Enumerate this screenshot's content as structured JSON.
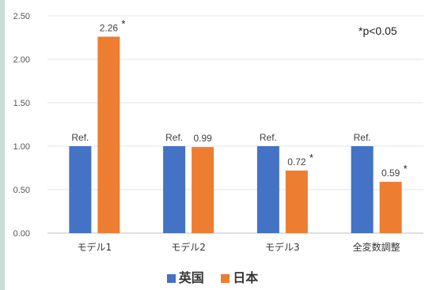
{
  "chart_data": {
    "type": "bar",
    "categories": [
      "モデル1",
      "モデル2",
      "モデル3",
      "全変数調整"
    ],
    "series": [
      {
        "name": "英国",
        "values": [
          1.0,
          1.0,
          1.0,
          1.0
        ],
        "labels": [
          "Ref.",
          "Ref.",
          "Ref.",
          "Ref."
        ],
        "color": "#4472c4"
      },
      {
        "name": "日本",
        "values": [
          2.26,
          0.99,
          0.72,
          0.59
        ],
        "labels": [
          "2.26",
          "0.99",
          "0.72",
          "0.59"
        ],
        "significant": [
          true,
          false,
          true,
          true
        ],
        "color": "#ed7d31"
      }
    ],
    "yticks": [
      "0.00",
      "0.50",
      "1.00",
      "1.50",
      "2.00",
      "2.50"
    ],
    "ylim": [
      0,
      2.5
    ],
    "grid": true,
    "legend_position": "bottom",
    "significance_marker": "*",
    "annotation": "*p<0.05"
  }
}
